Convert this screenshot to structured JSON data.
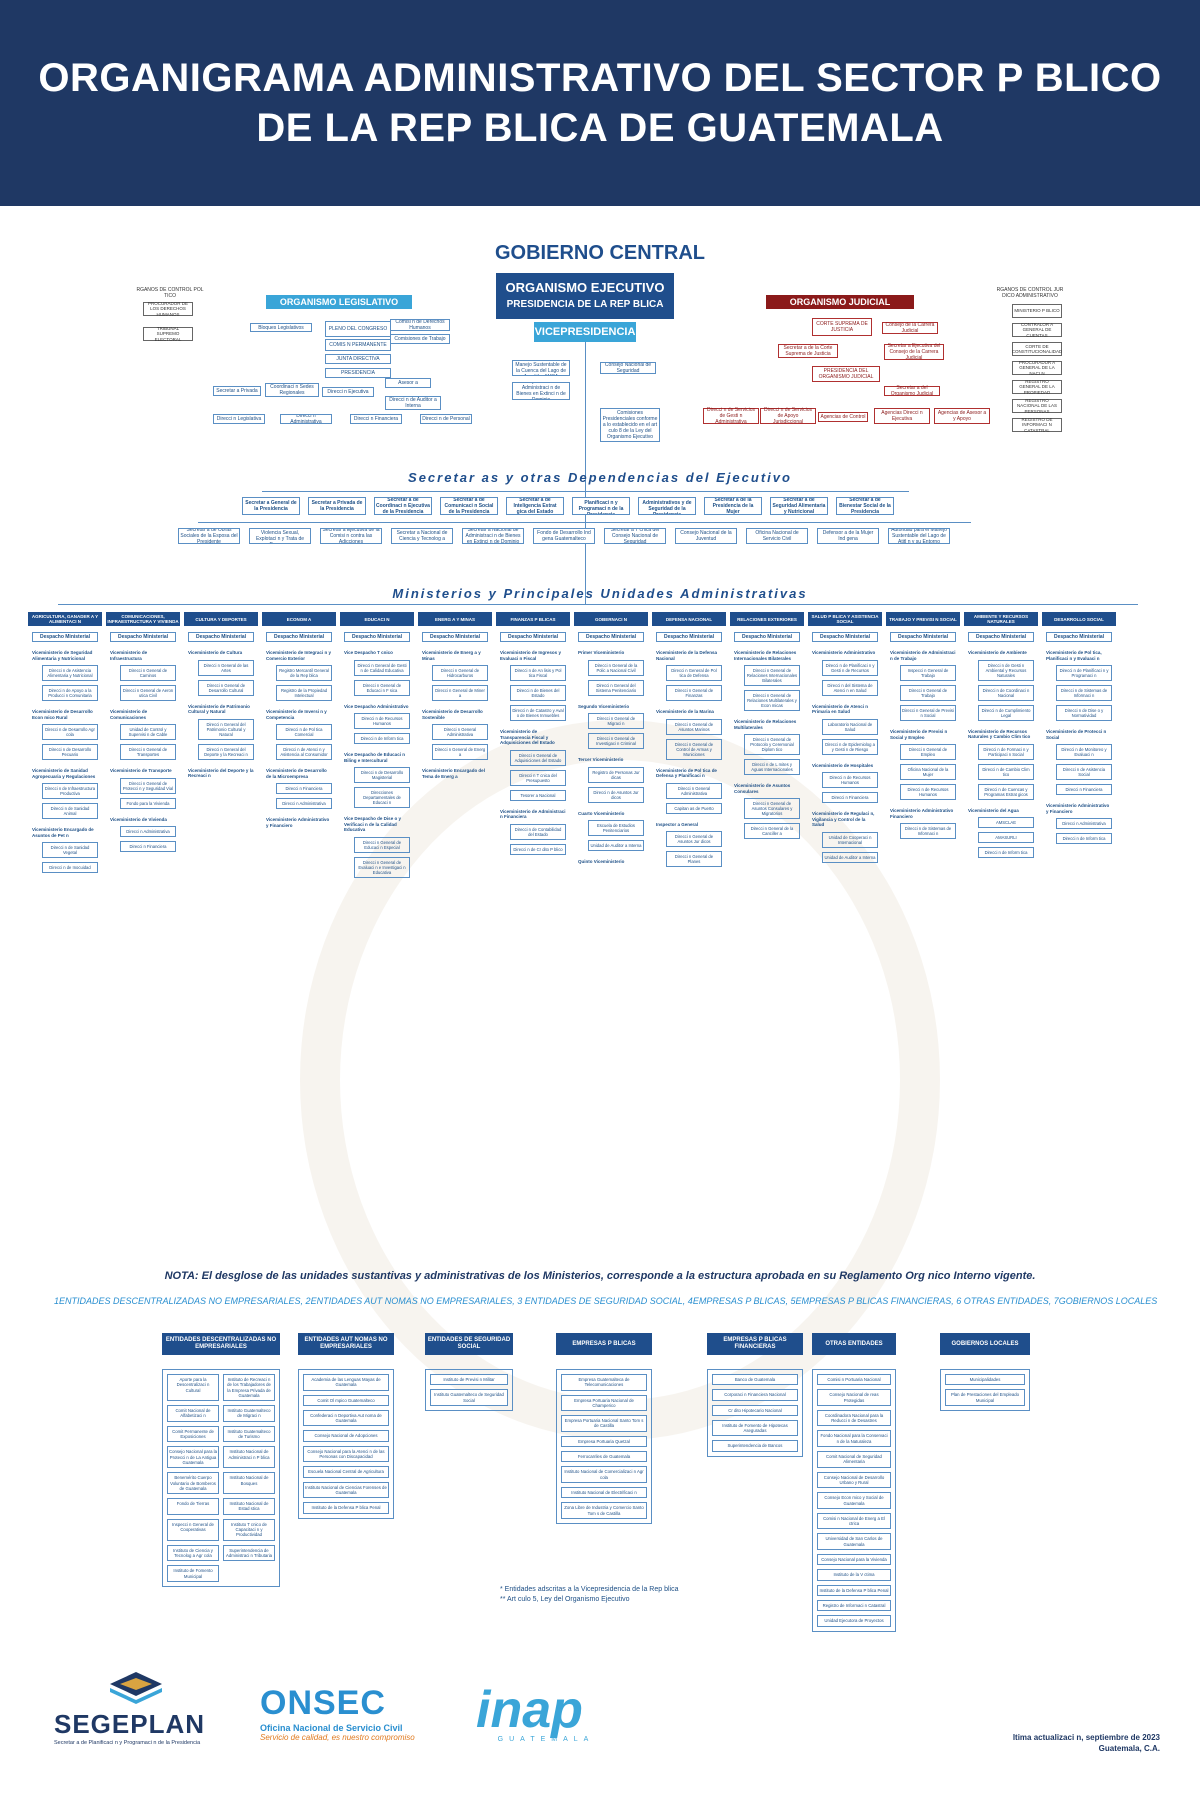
{
  "header": {
    "title_line1": "ORGANIGRAMA ADMINISTRATIVO DEL SECTOR P   BLICO",
    "title_line2": "DE LA REP   BLICA DE GUATEMALA"
  },
  "gobierno_central": "GOBIERNO CENTRAL",
  "executive": {
    "line1": "ORGANISMO EJECUTIVO",
    "line2": "PRESIDENCIA DE LA REP   BLICA",
    "vice": "VICEPRESIDENCIA"
  },
  "legislativo": {
    "title": "ORGANISMO LEGISLATIVO",
    "items": [
      "Bloques Legislativos",
      "PLENO DEL CONGRESO",
      "COMIS   N PERMANENTE",
      "JUNTA DIRECTIVA",
      "PRESIDENCIA",
      "Secretar  a Privada",
      "Coordinaci  n Sedes Regionales",
      "Direcci  n Ejecutiva",
      "Direcci  n Legislativa",
      "Direcci  n Administrativa",
      "Direcci  n Financiera",
      "Direcci  n de Personal",
      "Asesor  a",
      "Direcci  n de Auditor  a Interna",
      "Comisi  n de Derechos Humanos",
      "Comisiones de Trabajo"
    ]
  },
  "control_politico": {
    "title": "RGANOS DE CONTROL POL  TICO",
    "items": [
      "PROCURADOR DE LOS DERECHOS HUMANOS",
      "TRIBUNAL SUPREMO ELECTORAL"
    ]
  },
  "control_juridico": {
    "title": "RGANOS DE CONTROL JUR  DICO ADMINISTRATIVO",
    "items": [
      "MINISTERIO P   BLICO",
      "CONTRALOR  A GENERAL DE CUENTAS",
      "CORTE DE CONSTITUCIONALIDAD",
      "PROCURADUR  A GENERAL DE LA NACI  N",
      "REGISTRO GENERAL DE LA PROPIEDAD",
      "REGISTRO NACIONAL DE LAS PERSONAS",
      "REGISTRO DE INFORMACI  N CATASTRAL"
    ]
  },
  "judicial": {
    "title": "ORGANISMO JUDICIAL",
    "items": [
      "CORTE SUPREMA DE JUSTICIA",
      "Consejo de la Carrera Judicial",
      "Secretar  a de la Corte Suprema de Justicia",
      "Secretar  a Ejecutiva del Consejo de la Carrera Judicial",
      "PRESIDENCIA DEL ORGANISMO JUDICIAL",
      "Secretar  a del Organismo Judicial",
      "Direcci  n de Servicios de Gesti  n Administrativa",
      "Direcci  n de Servicios de Apoyo Jurisdiccional",
      "Agencias de Control",
      "Agencias Direcci  n Ejecutiva",
      "Agencias de Asesor  a y Apoyo"
    ]
  },
  "vice_items": [
    "Autoridad para el Manejo Sustentable de la Cuenca del Lago de Amatitl  n AMSA",
    "Consejo Nacional de Seguridad",
    "Consejo Nacional de Administraci  n de Bienes en Extinci  n de Dominio",
    "Comisiones Presidenciales conforme a lo establecido en el art  culo 8 de la Ley del Organismo Ejecutivo"
  ],
  "secretarias": {
    "title": "Secretar  as y otras Dependencias del Ejecutivo",
    "row1": [
      "Secretar  a General de la Presidencia",
      "Secretar  a Privada de la Presidencia",
      "Secretar  a de Coordinaci  n Ejecutiva de la Presidencia",
      "Secretar  a de Comunicaci  n Social de la Presidencia",
      "Secretar  a de Inteligencia Estrat  gica del Estado",
      "Secretar  a de Planificaci  n y Programaci  n de la Presidencia",
      "Secretar  a de Asuntos Administrativos y de Seguridad de la Presidencia",
      "Secretar  a de la Presidencia de la Mujer",
      "Secretar  a de Seguridad Alimentaria y Nutricional",
      "Secretar  a de Bienestar Social de la Presidencia"
    ],
    "row2": [
      "Secretar  a de Obras Sociales de la Esposa del Presidente",
      "Secretar  a contra la Violencia Sexual, Explotaci  n y Trata de Personas",
      "Secretar  a Ejecutiva de la Comisi  n contra las Adicciones",
      "Secretar  a Nacional de Ciencia y Tecnolog  a",
      "Secretar  a Nacional de Administraci  n de Bienes en Extinci  n de Dominio",
      "Fondo de Desarrollo Ind  gena Guatemalteco",
      "Secretar  a T  cnica del Consejo Nacional de Seguridad",
      "Consejo Nacional de la Juventud",
      "Oficina Nacional de Servicio Civil",
      "Defensor  a de la Mujer Ind  gena",
      "Autoridad para el Manejo Sustentable del Lago de Atitl  n y su Entorno"
    ]
  },
  "ministerios": {
    "title": "Ministerios y Principales Unidades Administrativas",
    "cols": [
      {
        "name": "AGRICULTURA, GANADER  A Y ALIMENTACI  N",
        "despacho": "Despacho Ministerial",
        "vice": [
          "Viceministerio de Seguridad Alimentaria y Nutricional",
          "Viceministerio de Desarrollo Econ  mico Rural",
          "Viceministerio de Sanidad Agropecuaria y Regulaciones",
          "Viceministerio Encargado de Asuntos de Pet  n"
        ],
        "dirs": [
          "Direcci  n de Asistencia Alimentaria y Nutricional",
          "Direcci  n de Apoyo a la Producci  n Comunitaria",
          "Direcci  n de Desarrollo Agr  cola",
          "Direcci  n de Desarrollo Pecuario",
          "Direcci  n de Infraestructura Productiva",
          "Direcci  n de Sanidad Animal",
          "Direcci  n de Sanidad Vegetal",
          "Direcci  n de Inocuidad"
        ]
      },
      {
        "name": "COMUNICACIONES, INFRAESTRUCTURA Y VIVIENDA",
        "despacho": "Despacho Ministerial",
        "vice": [
          "Viceministerio de Infraestructura",
          "Viceministerio de Comunicaciones",
          "Viceministerio de Transporte",
          "Viceministerio de Vivienda"
        ],
        "dirs": [
          "Direcci  n General de Caminos",
          "Direcci  n General de Aeron  utica Civil",
          "Unidad de Control y Supervisi  n de Cable",
          "Direcci  n General de Transportes",
          "Direcci  n General de Protecci  n y Seguridad Vial",
          "Fondo para la Vivienda",
          "Direcci  n Administrativa",
          "Direcci  n Financiera"
        ]
      },
      {
        "name": "CULTURA Y DEPORTES",
        "despacho": "Despacho Ministerial",
        "vice": [
          "Viceministerio de Cultura",
          "Viceministerio de Patrimonio Cultural y Natural",
          "Viceministerio del Deporte y la Recreaci  n"
        ],
        "dirs": [
          "Direcci  n General de las Artes",
          "Direcci  n General de Desarrollo Cultural",
          "Direcci  n General del Patrimonio Cultural y Natural",
          "Direcci  n General del Deporte y la Recreaci  n"
        ]
      },
      {
        "name": "ECONOM  A",
        "despacho": "Despacho Ministerial",
        "vice": [
          "Viceministerio de Integraci  n y Comercio Exterior",
          "Viceministerio de Inversi  n y Competencia",
          "Viceministerio de Desarrollo de la Microempresa",
          "Viceministerio Administrativo y Financiero"
        ],
        "dirs": [
          "Registro Mercantil General de la Rep  blica",
          "Registro de la Propiedad Intelectual",
          "Direcci  n de Pol  tica Comercial",
          "Direcci  n de Atenci  n y Asistencia al Consumidor",
          "Direcci  n Financiera",
          "Direcci  n Administrativa"
        ]
      },
      {
        "name": "EDUCACI  N",
        "despacho": "Despacho Ministerial",
        "vice": [
          "Vice Despacho T  cnico",
          "Vice Despacho Administrativo",
          "Vice Despacho de Educaci  n Biling  e Intercultural",
          "Vice Despacho de Dise  o y Verificaci  n de la Calidad Educativa"
        ],
        "dirs": [
          "Direcci  n General de Gesti  n de Calidad Educativa",
          "Direcci  n General de Educaci  n F  sica",
          "Direcci  n de Recursos Humanos",
          "Direcci  n de Inform  tica",
          "Direcci  n de Desarrollo Magisterial",
          "Direcciones Departamentales de Educaci  n",
          "Direcci  n General de Educaci  n Especial",
          "Direcci  n General de Evaluaci  n e Investigaci  n Educativa"
        ]
      },
      {
        "name": "ENERG  A Y MINAS",
        "despacho": "Despacho Ministerial",
        "vice": [
          "Viceministerio de Energ  a y Minas",
          "Viceministerio de Desarrollo Sostenible",
          "Viceministerio Encargado del Tema de Energ  a"
        ],
        "dirs": [
          "Direcci  n General de Hidrocarburos",
          "Direcci  n General de Miner  a",
          "Direcci  n General Administrativa",
          "Direcci  n General de Energ  a"
        ]
      },
      {
        "name": "FINANZAS P   BLICAS",
        "despacho": "Despacho Ministerial",
        "vice": [
          "Viceministerio de Ingresos y Evaluaci  n Fiscal",
          "Viceministerio de Transparencia Fiscal y Adquisiciones del Estado",
          "Viceministerio de Administraci  n Financiera"
        ],
        "dirs": [
          "Direcci  n de An  lisis y Pol  tica Fiscal",
          "Direcci  n de Bienes del Estado",
          "Direcci  n de Catastro y Aval  o de Bienes Inmuebles",
          "Direcci  n General de Adquisiciones del Estado",
          "Direcci  n T  cnica del Presupuesto",
          "Tesorer  a Nacional",
          "Direcci  n de Contabilidad del Estado",
          "Direcci  n de Cr  dito P  blico"
        ]
      },
      {
        "name": "GOBERNACI  N",
        "despacho": "Despacho Ministerial",
        "vice": [
          "Primer Viceministerio",
          "Segundo Viceministerio",
          "Tercer Viceministerio",
          "Cuarto Viceministerio",
          "Quinto Viceministerio"
        ],
        "dirs": [
          "Direcci  n General de la Polic  a Nacional Civil",
          "Direcci  n General del Sistema Penitenciario",
          "Direcci  n General de Migraci  n",
          "Direcci  n General de Investigaci  n Criminal",
          "Registro de Personas Jur  dicas",
          "Direcci  n de Asuntos Jur  dicos",
          "Escuela de Estudios Penitenciarios",
          "Unidad de Auditor  a Interna"
        ]
      },
      {
        "name": "DEFENSA NACIONAL",
        "despacho": "Despacho Ministerial",
        "vice": [
          "Viceministerio de la Defensa Nacional",
          "Viceministerio de la Marina",
          "Viceministerio de Pol  tica de Defensa y Planificaci  n",
          "Inspector  a General"
        ],
        "dirs": [
          "Direcci  n General de Pol  tica de Defensa",
          "Direcci  n General de Finanzas",
          "Direcci  n General de Asuntos Marinos",
          "Direcci  n General de Control de Armas y Municiones",
          "Direcci  n General Administrativa",
          "Capitan  as de Puerto",
          "Direcci  n General de Asuntos Jur  dicos",
          "Direcci  n General de Planes"
        ]
      },
      {
        "name": "RELACIONES EXTERIORES",
        "despacho": "Despacho Ministerial",
        "vice": [
          "Viceministerio de Relaciones Internacionales Bilaterales",
          "Viceministerio de Relaciones Multilaterales",
          "Viceministerio de Asuntos Consulares"
        ],
        "dirs": [
          "Direcci  n General de Relaciones Internacionales Bilaterales",
          "Direcci  n General de Relaciones Multilaterales y Econ  micas",
          "Direcci  n General de Protocolo y Ceremonial Diplom  tico",
          "Direcci  n de L  mites y Aguas Internacionales",
          "Direcci  n General de Asuntos Consulares y Migratorios",
          "Direcci  n General de la Canciller  a"
        ]
      },
      {
        "name": "SALUD P   BLICA Y ASISTENCIA SOCIAL",
        "despacho": "Despacho Ministerial",
        "vice": [
          "Viceministerio Administrativo",
          "Viceministerio de Atenci  n Primaria en Salud",
          "Viceministerio de Hospitales",
          "Viceministerio de Regulaci  n, Vigilancia y Control de la Salud"
        ],
        "dirs": [
          "Direcci  n de Planificaci  n y Gesti  n de Recursos",
          "Direcci  n del Sistema de Atenci  n en Salud",
          "Laboratorio Nacional de Salud",
          "Direcci  n de Epidemiolog  a y Gesti  n de Riesgo",
          "Direcci  n de Recursos Humanos",
          "Direcci  n Financiera",
          "Unidad de Cooperaci  n Internacional",
          "Unidad de Auditor  a Interna"
        ]
      },
      {
        "name": "TRABAJO Y PREVISI  N SOCIAL",
        "despacho": "Despacho Ministerial",
        "vice": [
          "Viceministerio de Administraci  n de Trabajo",
          "Viceministerio de Previsi  n Social y Empleo",
          "Viceministerio Administrativo Financiero"
        ],
        "dirs": [
          "Inspecci  n General de Trabajo",
          "Direcci  n General de Trabajo",
          "Direcci  n General de Previsi  n Social",
          "Direcci  n General de Empleo",
          "Oficina Nacional de la Mujer",
          "Direcci  n de Recursos Humanos",
          "Direcci  n de Sistemas de Informaci  n"
        ]
      },
      {
        "name": "AMBIENTE Y RECURSOS NATURALES",
        "despacho": "Despacho Ministerial",
        "vice": [
          "Viceministerio de Ambiente",
          "Viceministerio de Recursos Naturales y Cambio Clim  tico",
          "Viceministerio del Agua"
        ],
        "dirs": [
          "Direcci  n de Gesti  n Ambiental y Recursos Naturales",
          "Direcci  n de Coordinaci  n Nacional",
          "Direcci  n de Cumplimiento Legal",
          "Direcci  n de Formaci  n y Participaci  n Social",
          "Direcci  n de Cambio Clim  tico",
          "Direcci  n de Cuencas y Programas Estrat  gicos",
          "AMSCLAE",
          "AMASURLI",
          "Direcci  n de Inform  tica"
        ]
      },
      {
        "name": "DESARROLLO SOCIAL",
        "despacho": "Despacho Ministerial",
        "vice": [
          "Viceministerio de Pol  tica, Planificaci  n y Evaluaci  n",
          "Viceministerio de Protecci  n Social",
          "Viceministerio Administrativo y Financiero"
        ],
        "dirs": [
          "Direcci  n de Planificaci  n y Programaci  n",
          "Direcci  n de Sistemas de Informaci  n",
          "Direcci  n de Dise  o y Normatividad",
          "Direcci  n de Monitoreo y Evaluaci  n",
          "Direcci  n de Asistencia Social",
          "Direcci  n Financiera",
          "Direcci  n Administrativa",
          "Direcci  n de Inform  tica"
        ]
      }
    ]
  },
  "nota": "NOTA: El desglose de las unidades sustantivas y administrativas de los Ministerios, corresponde a la estructura aprobada en su Reglamento Org   nico Interno vigente.",
  "legend": "1ENTIDADES DESCENTRALIZADAS NO EMPRESARIALES, 2ENTIDADES AUT   NOMAS NO EMPRESARIALES, 3 ENTIDADES DE SEGURIDAD SOCIAL, 4EMPRESAS P   BLICAS, 5EMPRESAS P   BLICAS FINANCIERAS, 6 OTRAS ENTIDADES, 7GOBIERNOS LOCALES",
  "entidades": [
    {
      "name": "ENTIDADES DESCENTRALIZADAS NO EMPRESARIALES",
      "cols": 2,
      "items": [
        "Aporte para la Descentralizaci  n Cultural",
        "Instituto de Recreaci  n de los Trabajadores de la Empresa Privada de Guatemala",
        "Comit   Nacional de Alfabetizaci  n",
        "Instituto Guatemalteco de Migraci  n",
        "Comit   Permanente de Exposiciones",
        "Instituto Guatemalteco de Turismo",
        "Consejo Nacional para la Protecci  n de La Antigua Guatemala",
        "Instituto Nacional de Administraci  n P  blica",
        "Benemérito Cuerpo Voluntario de Bomberos de Guatemala",
        "Instituto Nacional de Bosques",
        "Fondo de Tierras",
        "Instituto Nacional de Estad  stica",
        "Inspecci  n General de Cooperativas",
        "Instituto T  cnico de Capacitaci  n y Productividad",
        "Instituto de Ciencia y Tecnolog  a Agr  cola",
        "Superintendencia de Administraci  n Tributaria",
        "Instituto de Fomento Municipal"
      ]
    },
    {
      "name": "ENTIDADES AUT   NOMAS NO EMPRESARIALES",
      "cols": 1,
      "items": [
        "Academia de las Lenguas Mayas de Guatemala",
        "Comit   Ol  mpico Guatemalteco",
        "Confederaci  n Deportiva Aut  noma de Guatemala",
        "Consejo Nacional de Adopciones",
        "Consejo Nacional para la Atenci  n de las Personas con Discapacidad",
        "Escuela Nacional Central de Agricultura",
        "Instituto Nacional de Ciencias Forenses de Guatemala",
        "Instituto de la Defensa P  blica Penal"
      ]
    },
    {
      "name": "ENTIDADES DE SEGURIDAD SOCIAL",
      "cols": 1,
      "items": [
        "Instituto de Previsi  n Militar",
        "Instituto Guatemalteco de Seguridad Social"
      ]
    },
    {
      "name": "EMPRESAS P   BLICAS",
      "cols": 1,
      "items": [
        "Empresa Guatemalteca de Telecomunicaciones",
        "Empresa Portuaria Nacional de Champerico",
        "Empresa Portuaria Nacional Santo Tom  s de Castilla",
        "Empresa Portuaria Quetzal",
        "Ferrocarriles de Guatemala",
        "Instituto Nacional de Comercializaci  n Agr  cola",
        "Instituto Nacional de Electrificaci  n",
        "Zona Libre de Industria y Comercio Santo Tom  s de Castilla"
      ]
    },
    {
      "name": "EMPRESAS P   BLICAS FINANCIERAS",
      "cols": 1,
      "items": [
        "Banco de Guatemala",
        "Corporaci  n Financiera Nacional",
        "Cr  dito Hipotecario Nacional",
        "Instituto de Fomento de Hipotecas Aseguradas",
        "Superintendencia de Bancos"
      ]
    },
    {
      "name": "OTRAS ENTIDADES",
      "cols": 1,
      "items": [
        "Comisi  n Portuaria Nacional",
        "Consejo Nacional de   reas Protegidas",
        "Coordinadora Nacional para la Reducci  n de Desastres",
        "Fondo Nacional para la Conservaci  n de la Naturaleza",
        "Comit   Nacional de Seguridad Alimentaria",
        "Consejo Nacional de Desarrollo Urbano y Rural",
        "Consejo Econ  mico y Social de Guatemala",
        "Comisi  n Nacional de Energ  a El  ctrica",
        "Universidad de San Carlos de Guatemala",
        "Consejo Nacional para la Vivienda",
        "Instituto de la V  ctima",
        "Instituto de la Defensa P  blica Penal",
        "Registro de Informaci  n Catastral",
        "Unidad Ejecutora de Proyectos"
      ]
    },
    {
      "name": "GOBIERNOS LOCALES",
      "cols": 1,
      "items": [
        "Municipalidades",
        "Plan de Prestaciones del Empleado Municipal"
      ]
    }
  ],
  "footnotes": [
    "* Entidades adscritas a la Vicepresidencia de la Rep   blica",
    "** Art  culo 5, Ley del Organismo Ejecutivo"
  ],
  "logos": {
    "segeplan": "SEGEPLAN",
    "segeplan_sub": "Secretar  a de Planificaci  n y Programaci  n de la Presidencia",
    "onsec": "ONSEC",
    "onsec_sub1": "Oficina Nacional de Servicio Civil",
    "onsec_sub2": "Servicio de calidad, es nuestro compromiso",
    "inap": "inap",
    "inap_sub": "GUATEMALA"
  },
  "update": {
    "line1": "ltima actualizaci   n, septiembre de 2023",
    "line2": "Guatemala, C.A."
  },
  "colors": {
    "navy": "#1f3864",
    "blue": "#1f4e8c",
    "sky": "#3aa5d8",
    "red": "#8b1a1a"
  }
}
